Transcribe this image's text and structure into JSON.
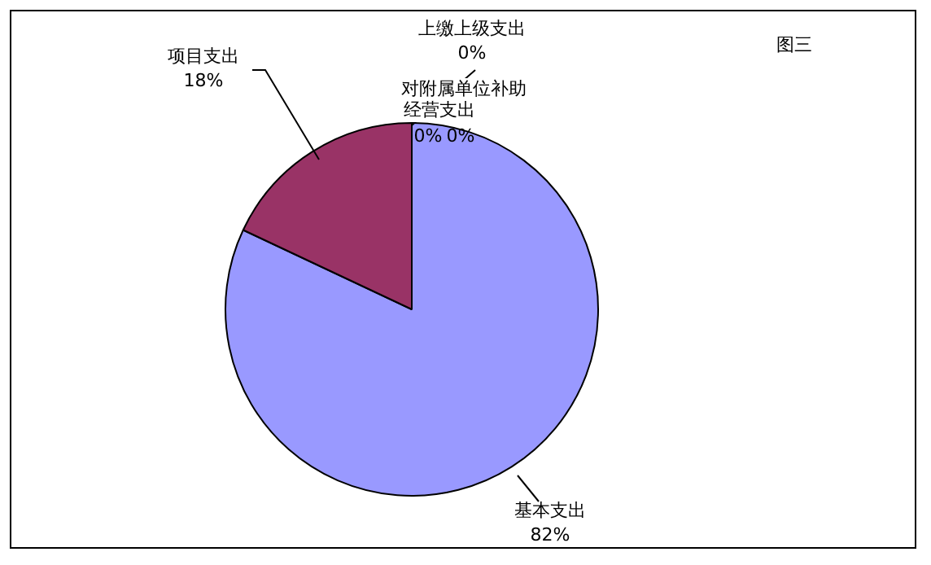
{
  "chart_data": {
    "type": "pie",
    "title": "图三",
    "categories": [
      "基本支出",
      "项目支出",
      "上缴上级支出",
      "对附属单位补助",
      "经营支出"
    ],
    "values": [
      82,
      18,
      0,
      0,
      0
    ],
    "colors": [
      "#9999ff",
      "#993366",
      "#ffffcc",
      "#ccffff",
      "#660066"
    ],
    "value_labels": [
      "82%",
      "18%",
      "0%",
      "0%",
      "0%"
    ],
    "legend": false
  }
}
